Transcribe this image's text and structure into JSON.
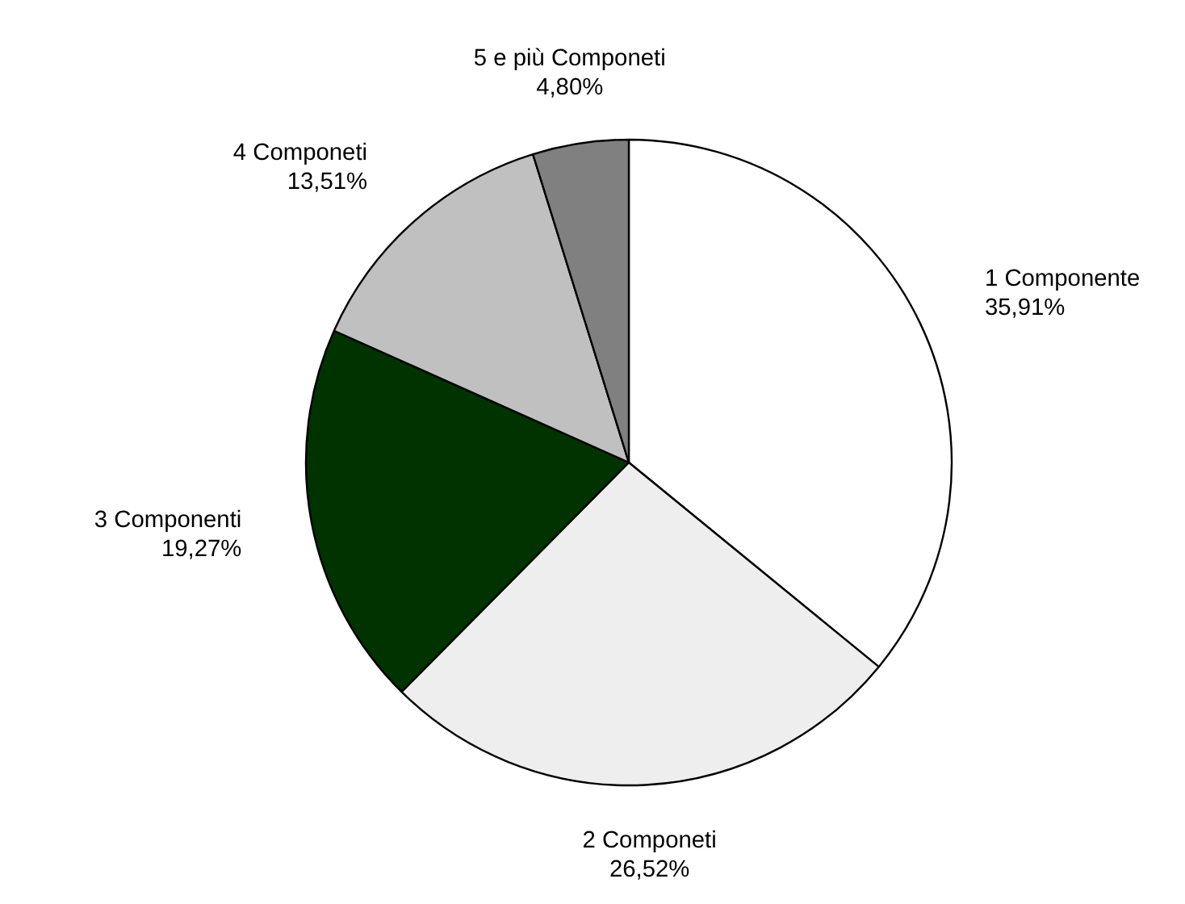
{
  "chart_data": {
    "type": "pie",
    "categories": [
      "1 Componente",
      "2 Componeti",
      "3 Componenti",
      "4 Componeti",
      "5 e più Componeti"
    ],
    "values": [
      35.91,
      26.52,
      19.27,
      13.51,
      4.8
    ],
    "value_labels": [
      "35,91%",
      "26,52%",
      "19,27%",
      "13,51%",
      "4,80%"
    ],
    "colors": [
      "#ffffff",
      "#eeeeee",
      "#003300",
      "#c0c0c0",
      "#808080"
    ]
  }
}
